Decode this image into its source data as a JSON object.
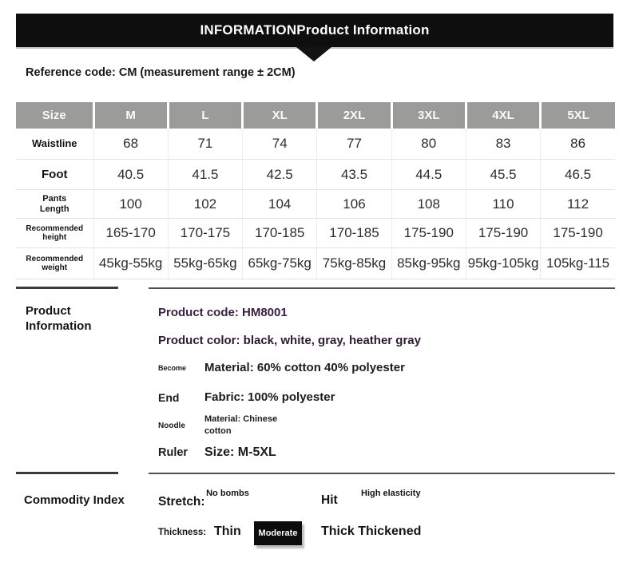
{
  "banner": {
    "title": "INFORMATIONProduct Information"
  },
  "reference_note": "Reference code: CM (measurement range ± 2CM)",
  "size_table": {
    "columns": [
      "Size",
      "M",
      "L",
      "XL",
      "2XL",
      "3XL",
      "4XL",
      "5XL"
    ],
    "rows": [
      {
        "label": "Waistline",
        "values": [
          "68",
          "71",
          "74",
          "77",
          "80",
          "83",
          "86"
        ]
      },
      {
        "label": "Foot",
        "values": [
          "40.5",
          "41.5",
          "42.5",
          "43.5",
          "44.5",
          "45.5",
          "46.5"
        ]
      },
      {
        "label": "Pants Length",
        "values": [
          "100",
          "102",
          "104",
          "106",
          "108",
          "110",
          "112"
        ]
      },
      {
        "label": "Recommended height",
        "values": [
          "165-170",
          "170-175",
          "170-185",
          "170-185",
          "175-190",
          "175-190",
          "175-190"
        ]
      },
      {
        "label": "Recommended weight",
        "values": [
          "45kg-55kg",
          "55kg-65kg",
          "65kg-75kg",
          "75kg-85kg",
          "85kg-95kg",
          "95kg-105kg",
          "105kg-115"
        ]
      }
    ]
  },
  "product_info": {
    "section_label": "Product Information",
    "product_code": "Product code: HM8001",
    "product_color": "Product color: black, white, gray, heather gray",
    "attributes": [
      {
        "key": "Become",
        "value": "Material: 60% cotton 40% polyester"
      },
      {
        "key": "End",
        "value": "Fabric: 100% polyester"
      },
      {
        "key": "Noodle",
        "value": "Material: Chinese cotton"
      },
      {
        "key": "Ruler",
        "value": "Size: M-5XL"
      }
    ]
  },
  "commodity_index": {
    "section_label": "Commodity Index",
    "stretch": {
      "label": "Stretch:",
      "items": [
        {
          "text": "No bombs",
          "emphasis": false
        },
        {
          "text": "Hit",
          "emphasis": true
        },
        {
          "text": "High elasticity",
          "emphasis": false
        }
      ]
    },
    "thickness": {
      "label": "Thickness:",
      "items": [
        {
          "text": "Thin",
          "selected": false
        },
        {
          "text": "Moderate",
          "selected": true
        },
        {
          "text": "Thick Thickened",
          "selected": false
        }
      ],
      "selected": "Moderate"
    }
  },
  "colors": {
    "banner_bg": "#0f0e0e",
    "table_header_bg": "#9b9b99",
    "accent_text": "#3a2040",
    "selected_bg": "#0c0c0c"
  }
}
